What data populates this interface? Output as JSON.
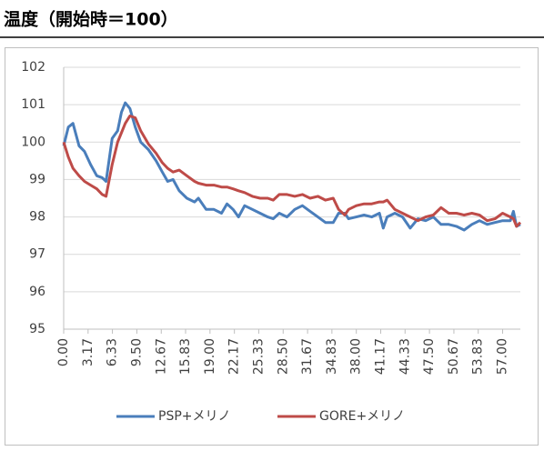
{
  "chart_data": {
    "type": "line",
    "title": "温度（開始時＝100）",
    "x": [
      0,
      0.6,
      1.2,
      2,
      2.7,
      3.5,
      4.3,
      5,
      5.5,
      6.3,
      7,
      7.5,
      8,
      8.6,
      9.3,
      10,
      11,
      12,
      12.8,
      13.5,
      14.2,
      15,
      16,
      17,
      17.5,
      18.5,
      19.5,
      20.5,
      21.2,
      22,
      22.7,
      23.5,
      24.5,
      25.5,
      26.5,
      27.2,
      28,
      29,
      30,
      31,
      32,
      33,
      34,
      35,
      35.7,
      36.5,
      37,
      38,
      39,
      40,
      41,
      41.5,
      42,
      43,
      44,
      45,
      46,
      47,
      48,
      49,
      50,
      51,
      52,
      53,
      54,
      55,
      56,
      57,
      58,
      58.4,
      58.8,
      59.3
    ],
    "series": [
      {
        "name": "PSP+メリノ",
        "color": "#4a7ebb",
        "values": [
          99.9,
          100.4,
          100.5,
          99.9,
          99.75,
          99.4,
          99.1,
          99.05,
          98.95,
          100.1,
          100.3,
          100.8,
          101.05,
          100.9,
          100.4,
          100.0,
          99.8,
          99.5,
          99.2,
          98.95,
          99.0,
          98.7,
          98.5,
          98.4,
          98.5,
          98.2,
          98.2,
          98.1,
          98.35,
          98.2,
          98.0,
          98.3,
          98.2,
          98.1,
          98.0,
          97.95,
          98.1,
          98.0,
          98.2,
          98.3,
          98.15,
          98.0,
          97.85,
          97.85,
          98.1,
          98.1,
          97.95,
          98.0,
          98.05,
          98.0,
          98.1,
          97.7,
          98.0,
          98.1,
          98.0,
          97.7,
          97.95,
          97.9,
          98.0,
          97.8,
          97.8,
          97.75,
          97.65,
          97.8,
          97.9,
          97.8,
          97.85,
          97.9,
          97.9,
          98.15,
          97.75,
          97.8
        ]
      },
      {
        "name": "GORE+メリノ",
        "color": "#be4b48",
        "values": [
          100.0,
          99.6,
          99.3,
          99.1,
          98.95,
          98.85,
          98.75,
          98.6,
          98.55,
          99.4,
          100.0,
          100.25,
          100.5,
          100.7,
          100.65,
          100.3,
          99.95,
          99.7,
          99.45,
          99.3,
          99.2,
          99.25,
          99.1,
          98.95,
          98.9,
          98.85,
          98.85,
          98.8,
          98.8,
          98.75,
          98.7,
          98.65,
          98.55,
          98.5,
          98.5,
          98.45,
          98.6,
          98.6,
          98.55,
          98.6,
          98.5,
          98.55,
          98.45,
          98.5,
          98.2,
          98.05,
          98.2,
          98.3,
          98.35,
          98.35,
          98.4,
          98.4,
          98.45,
          98.2,
          98.1,
          98.0,
          97.9,
          98.0,
          98.05,
          98.25,
          98.1,
          98.1,
          98.05,
          98.1,
          98.05,
          97.9,
          97.95,
          98.1,
          98.0,
          97.95,
          97.75,
          97.85
        ]
      }
    ],
    "xlim": [
      0,
      59.3
    ],
    "xticks": [
      {
        "value": 0,
        "label": "0.00"
      },
      3.17,
      6.33,
      {
        "value": 9.5,
        "label": "9.50"
      },
      12.67,
      15.83,
      {
        "value": 19,
        "label": "19.00"
      },
      22.17,
      25.33,
      {
        "value": 28.5,
        "label": "28.50"
      },
      31.67,
      34.83,
      {
        "value": 38,
        "label": "38.00"
      },
      41.17,
      44.33,
      {
        "value": 47.5,
        "label": "47.50"
      },
      50.67,
      53.83,
      {
        "value": 57,
        "label": "57.00"
      }
    ],
    "ylim": [
      95,
      102
    ],
    "yticks": [
      95,
      96,
      97,
      98,
      99,
      100,
      101,
      102
    ],
    "grid": true
  }
}
